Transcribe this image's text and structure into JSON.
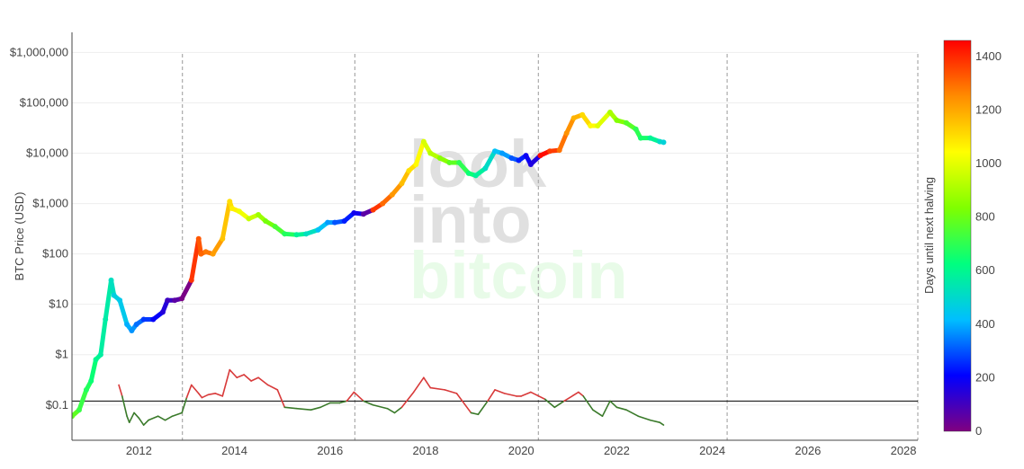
{
  "watermark": {
    "line1": "look",
    "line2": "into",
    "line3": "bitcoin",
    "grey": "#e0e0e0",
    "green": "#e8fbe8"
  },
  "colors": {
    "osc_high": "#d83a3a",
    "osc_low": "#3a7a2a",
    "threshold_line": "#000000",
    "halving_line": "#aaaaaa",
    "gridline": "#eeeeee"
  },
  "colorbar": {
    "title": "Days until next halving",
    "min": 0,
    "max": 1460,
    "ticks": [
      0,
      200,
      400,
      600,
      800,
      1000,
      1200,
      1400
    ],
    "colorscale": [
      "#800080",
      "#0000ff",
      "#00bfff",
      "#00ff7f",
      "#7fff00",
      "#ffff00",
      "#ff8c00",
      "#ff0000"
    ]
  },
  "chart_data": {
    "type": "scatter",
    "ylabel": "BTC Price (USD)",
    "xlabel": "",
    "y_scale": "log",
    "xlim": [
      2010.6,
      2028.3
    ],
    "ylim_log10": [
      -1.7,
      6.4
    ],
    "x_ticks": [
      2012,
      2014,
      2016,
      2018,
      2020,
      2022,
      2024,
      2026,
      2028
    ],
    "x_tick_labels": [
      "2012",
      "2014",
      "2016",
      "2018",
      "2020",
      "2022",
      "2024",
      "2026",
      "2028"
    ],
    "y_ticks_log10": [
      -1,
      0,
      1,
      2,
      3,
      4,
      5,
      6
    ],
    "y_tick_labels": [
      "$0.1",
      "$1",
      "$10",
      "$100",
      "$1,000",
      "$10,000",
      "$100,000",
      "$1,000,000"
    ],
    "halving_dates": [
      2012.91,
      2016.52,
      2020.36,
      2024.31,
      2028.3
    ],
    "threshold_value": 0.12,
    "series": [
      {
        "type": "price",
        "x": [
          2010.6,
          2010.75,
          2010.9,
          2011.0,
          2011.1,
          2011.2,
          2011.3,
          2011.42,
          2011.48,
          2011.6,
          2011.75,
          2011.85,
          2011.95,
          2012.1,
          2012.3,
          2012.5,
          2012.6,
          2012.75,
          2012.9,
          2013.1,
          2013.25,
          2013.3,
          2013.4,
          2013.55,
          2013.75,
          2013.9,
          2013.95,
          2014.1,
          2014.3,
          2014.5,
          2014.65,
          2014.85,
          2015.05,
          2015.3,
          2015.5,
          2015.75,
          2015.95,
          2016.1,
          2016.3,
          2016.5,
          2016.7,
          2016.9,
          2017.1,
          2017.3,
          2017.5,
          2017.65,
          2017.8,
          2017.96,
          2018.1,
          2018.3,
          2018.5,
          2018.7,
          2018.9,
          2019.05,
          2019.25,
          2019.45,
          2019.6,
          2019.8,
          2019.95,
          2020.1,
          2020.2,
          2020.4,
          2020.6,
          2020.8,
          2020.95,
          2021.1,
          2021.28,
          2021.45,
          2021.6,
          2021.86,
          2022.0,
          2022.2,
          2022.4,
          2022.5,
          2022.7,
          2022.9,
          2022.98
        ],
        "y": [
          0.06,
          0.08,
          0.2,
          0.3,
          0.8,
          1.0,
          5.0,
          30.0,
          15.0,
          12.0,
          4.0,
          3.0,
          4.0,
          5.0,
          5.0,
          7.0,
          12.0,
          12.0,
          13.0,
          30.0,
          200.0,
          100.0,
          110.0,
          100.0,
          200.0,
          1100.0,
          800.0,
          700.0,
          500.0,
          600.0,
          450.0,
          350.0,
          250.0,
          240.0,
          250.0,
          300.0,
          420.0,
          420.0,
          450.0,
          650.0,
          620.0,
          750.0,
          1000.0,
          1500.0,
          2500.0,
          4500.0,
          6000.0,
          17000.0,
          10000.0,
          8000.0,
          6500.0,
          6500.0,
          4000.0,
          3600.0,
          5000.0,
          11000.0,
          10000.0,
          8000.0,
          7200.0,
          9000.0,
          6000.0,
          9000.0,
          11000.0,
          11500.0,
          25000.0,
          50000.0,
          58000.0,
          35000.0,
          35000.0,
          65000.0,
          45000.0,
          40000.0,
          30000.0,
          20000.0,
          20000.0,
          17000.0,
          16500.0
        ],
        "days_until_halving": [
          780,
          720,
          680,
          640,
          600,
          570,
          560,
          520,
          470,
          450,
          400,
          370,
          330,
          270,
          200,
          150,
          110,
          60,
          10,
          1380,
          1330,
          1310,
          1280,
          1220,
          1150,
          1100,
          1070,
          1020,
          950,
          880,
          820,
          750,
          680,
          590,
          520,
          430,
          380,
          300,
          240,
          180,
          60,
          1380,
          1300,
          1230,
          1160,
          1100,
          1050,
          980,
          920,
          850,
          780,
          700,
          640,
          580,
          510,
          430,
          380,
          300,
          240,
          190,
          160,
          1440,
          1370,
          1290,
          1240,
          1180,
          1110,
          1050,
          990,
          900,
          840,
          770,
          700,
          660,
          590,
          510,
          480
        ]
      },
      {
        "type": "oscillator",
        "x": [
          2011.58,
          2011.65,
          2011.75,
          2011.8,
          2011.9,
          2012.0,
          2012.1,
          2012.2,
          2012.4,
          2012.55,
          2012.7,
          2012.9,
          2013.0,
          2013.1,
          2013.25,
          2013.32,
          2013.45,
          2013.6,
          2013.75,
          2013.9,
          2014.05,
          2014.2,
          2014.35,
          2014.5,
          2014.7,
          2014.9,
          2015.05,
          2015.3,
          2015.6,
          2015.8,
          2016.0,
          2016.2,
          2016.35,
          2016.5,
          2016.7,
          2016.9,
          2017.2,
          2017.35,
          2017.5,
          2017.75,
          2017.96,
          2018.1,
          2018.4,
          2018.65,
          2018.95,
          2019.1,
          2019.3,
          2019.45,
          2019.65,
          2019.9,
          2020.0,
          2020.2,
          2020.5,
          2020.7,
          2020.9,
          2021.2,
          2021.3,
          2021.5,
          2021.7,
          2021.86,
          2022.0,
          2022.2,
          2022.45,
          2022.7,
          2022.9,
          2022.98
        ],
        "y": [
          0.25,
          0.15,
          0.06,
          0.045,
          0.07,
          0.055,
          0.04,
          0.05,
          0.06,
          0.05,
          0.06,
          0.07,
          0.14,
          0.25,
          0.17,
          0.14,
          0.16,
          0.17,
          0.15,
          0.5,
          0.35,
          0.4,
          0.3,
          0.35,
          0.25,
          0.2,
          0.09,
          0.085,
          0.08,
          0.09,
          0.11,
          0.11,
          0.12,
          0.18,
          0.12,
          0.1,
          0.085,
          0.07,
          0.09,
          0.18,
          0.35,
          0.22,
          0.2,
          0.17,
          0.07,
          0.065,
          0.12,
          0.2,
          0.17,
          0.15,
          0.15,
          0.18,
          0.13,
          0.09,
          0.12,
          0.18,
          0.15,
          0.08,
          0.06,
          0.12,
          0.09,
          0.08,
          0.06,
          0.05,
          0.045,
          0.04
        ]
      }
    ]
  }
}
